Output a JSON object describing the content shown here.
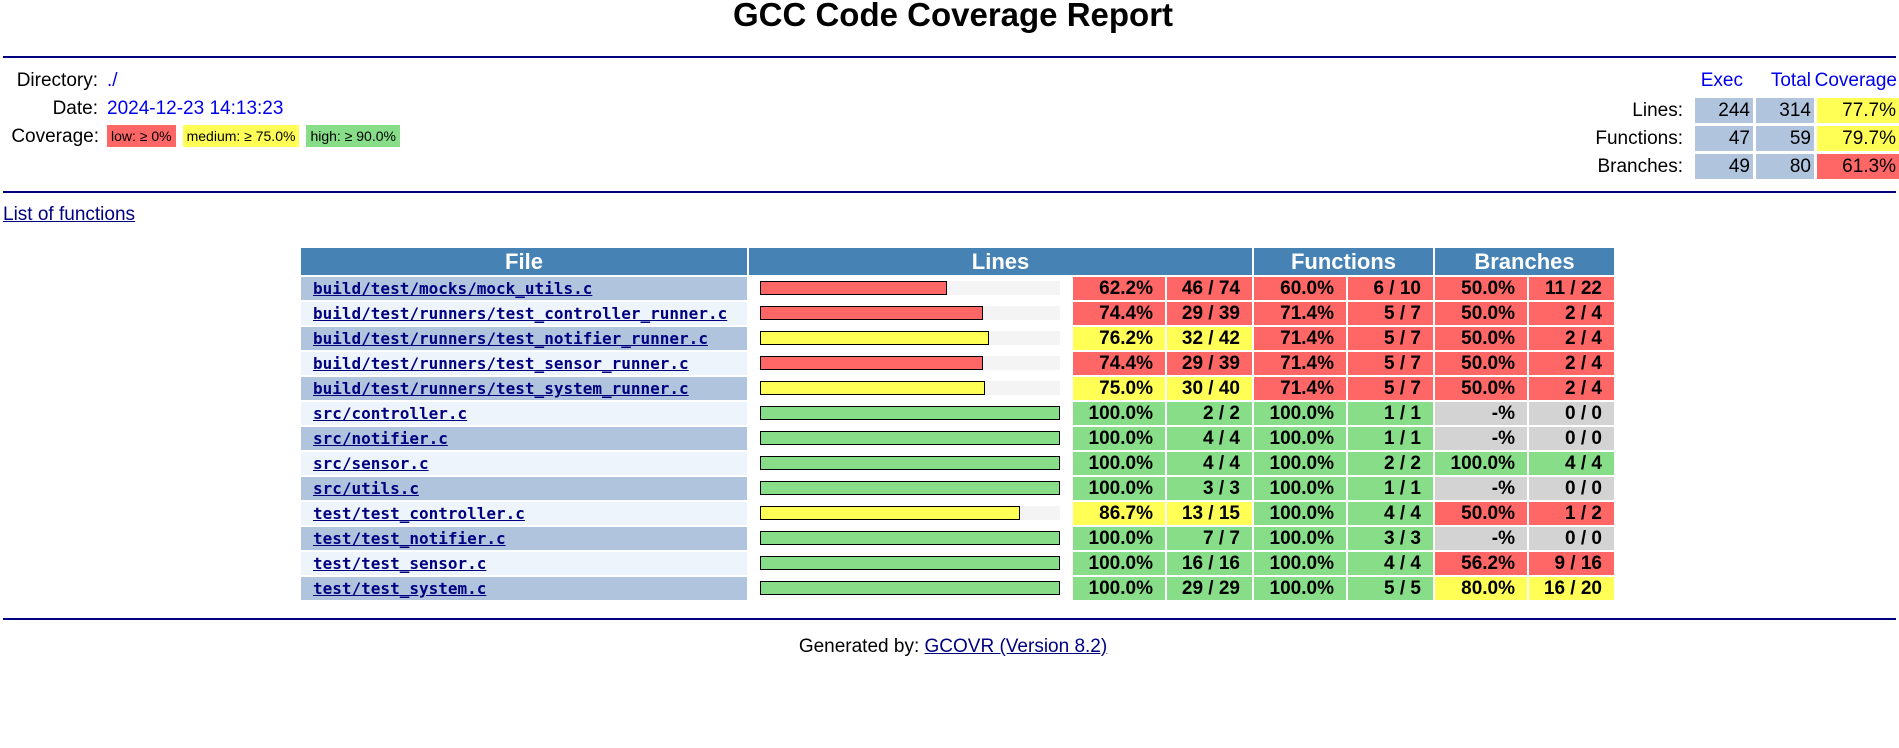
{
  "title": "GCC Code Coverage Report",
  "summary": {
    "directory_label": "Directory:",
    "directory_value": "./",
    "date_label": "Date:",
    "date_value": "2024-12-23 14:13:23",
    "coverage_label": "Coverage:",
    "legend": {
      "low": "low: ≥ 0%",
      "medium": "medium: ≥ 75.0%",
      "high": "high: ≥ 90.0%"
    }
  },
  "totals": {
    "headers": {
      "exec": "Exec",
      "total": "Total",
      "coverage": "Coverage"
    },
    "rows": [
      {
        "label": "Lines:",
        "exec": "244",
        "total": "314",
        "coverage": "77.7%",
        "level": "med"
      },
      {
        "label": "Functions:",
        "exec": "47",
        "total": "59",
        "coverage": "79.7%",
        "level": "med"
      },
      {
        "label": "Branches:",
        "exec": "49",
        "total": "80",
        "coverage": "61.3%",
        "level": "low"
      }
    ]
  },
  "list_of_functions_link": "List of functions",
  "table": {
    "headers": {
      "file": "File",
      "lines": "Lines",
      "functions": "Functions",
      "branches": "Branches"
    },
    "rows": [
      {
        "file": "build/test/mocks/mock_utils.c",
        "line_fraction": 0.622,
        "line_level": "low",
        "line_pct": "62.2%",
        "line_frac": "46 / 74",
        "fn_pct": "60.0%",
        "fn_frac": "6 / 10",
        "fn_level": "low",
        "br_pct": "50.0%",
        "br_frac": "11 / 22",
        "br_level": "low"
      },
      {
        "file": "build/test/runners/test_controller_runner.c",
        "line_fraction": 0.744,
        "line_level": "low",
        "line_pct": "74.4%",
        "line_frac": "29 / 39",
        "fn_pct": "71.4%",
        "fn_frac": "5 / 7",
        "fn_level": "low",
        "br_pct": "50.0%",
        "br_frac": "2 / 4",
        "br_level": "low"
      },
      {
        "file": "build/test/runners/test_notifier_runner.c",
        "line_fraction": 0.762,
        "line_level": "med",
        "line_pct": "76.2%",
        "line_frac": "32 / 42",
        "fn_pct": "71.4%",
        "fn_frac": "5 / 7",
        "fn_level": "low",
        "br_pct": "50.0%",
        "br_frac": "2 / 4",
        "br_level": "low"
      },
      {
        "file": "build/test/runners/test_sensor_runner.c",
        "line_fraction": 0.744,
        "line_level": "low",
        "line_pct": "74.4%",
        "line_frac": "29 / 39",
        "fn_pct": "71.4%",
        "fn_frac": "5 / 7",
        "fn_level": "low",
        "br_pct": "50.0%",
        "br_frac": "2 / 4",
        "br_level": "low"
      },
      {
        "file": "build/test/runners/test_system_runner.c",
        "line_fraction": 0.75,
        "line_level": "med",
        "line_pct": "75.0%",
        "line_frac": "30 / 40",
        "fn_pct": "71.4%",
        "fn_frac": "5 / 7",
        "fn_level": "low",
        "br_pct": "50.0%",
        "br_frac": "2 / 4",
        "br_level": "low"
      },
      {
        "file": "src/controller.c",
        "line_fraction": 1.0,
        "line_level": "high",
        "line_pct": "100.0%",
        "line_frac": "2 / 2",
        "fn_pct": "100.0%",
        "fn_frac": "1 / 1",
        "fn_level": "high",
        "br_pct": "-%",
        "br_frac": "0 / 0",
        "br_level": "none"
      },
      {
        "file": "src/notifier.c",
        "line_fraction": 1.0,
        "line_level": "high",
        "line_pct": "100.0%",
        "line_frac": "4 / 4",
        "fn_pct": "100.0%",
        "fn_frac": "1 / 1",
        "fn_level": "high",
        "br_pct": "-%",
        "br_frac": "0 / 0",
        "br_level": "none"
      },
      {
        "file": "src/sensor.c",
        "line_fraction": 1.0,
        "line_level": "high",
        "line_pct": "100.0%",
        "line_frac": "4 / 4",
        "fn_pct": "100.0%",
        "fn_frac": "2 / 2",
        "fn_level": "high",
        "br_pct": "100.0%",
        "br_frac": "4 / 4",
        "br_level": "high"
      },
      {
        "file": "src/utils.c",
        "line_fraction": 1.0,
        "line_level": "high",
        "line_pct": "100.0%",
        "line_frac": "3 / 3",
        "fn_pct": "100.0%",
        "fn_frac": "1 / 1",
        "fn_level": "high",
        "br_pct": "-%",
        "br_frac": "0 / 0",
        "br_level": "none"
      },
      {
        "file": "test/test_controller.c",
        "line_fraction": 0.867,
        "line_level": "med",
        "line_pct": "86.7%",
        "line_frac": "13 / 15",
        "fn_pct": "100.0%",
        "fn_frac": "4 / 4",
        "fn_level": "high",
        "br_pct": "50.0%",
        "br_frac": "1 / 2",
        "br_level": "low"
      },
      {
        "file": "test/test_notifier.c",
        "line_fraction": 1.0,
        "line_level": "high",
        "line_pct": "100.0%",
        "line_frac": "7 / 7",
        "fn_pct": "100.0%",
        "fn_frac": "3 / 3",
        "fn_level": "high",
        "br_pct": "-%",
        "br_frac": "0 / 0",
        "br_level": "none"
      },
      {
        "file": "test/test_sensor.c",
        "line_fraction": 1.0,
        "line_level": "high",
        "line_pct": "100.0%",
        "line_frac": "16 / 16",
        "fn_pct": "100.0%",
        "fn_frac": "4 / 4",
        "fn_level": "high",
        "br_pct": "56.2%",
        "br_frac": "9 / 16",
        "br_level": "low"
      },
      {
        "file": "test/test_system.c",
        "line_fraction": 1.0,
        "line_level": "high",
        "line_pct": "100.0%",
        "line_frac": "29 / 29",
        "fn_pct": "100.0%",
        "fn_frac": "5 / 5",
        "fn_level": "high",
        "br_pct": "80.0%",
        "br_frac": "16 / 20",
        "br_level": "med"
      }
    ]
  },
  "footer": {
    "prefix": "Generated by: ",
    "link": "GCOVR (Version 8.2)"
  },
  "colors": {
    "low": "#ff6666",
    "med": "#ffff55",
    "high": "#88dd88",
    "none": "#d3d3d3",
    "header": "#4682b4",
    "rule": "#000080"
  }
}
